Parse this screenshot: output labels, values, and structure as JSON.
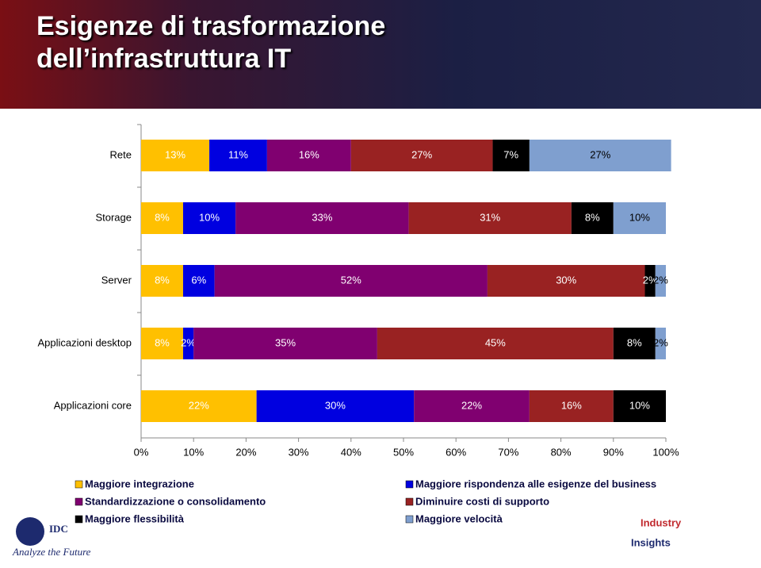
{
  "chart_data": {
    "type": "stacked-bar",
    "title": [
      "Esigenze di trasformazione",
      "dell’infrastruttura IT"
    ],
    "categories": [
      "Rete",
      "Storage",
      "Server",
      "Applicazioni desktop",
      "Applicazioni core"
    ],
    "series": [
      {
        "name": "Maggiore integrazione",
        "color": "#FFC000",
        "values": [
          13,
          8,
          8,
          8,
          22
        ],
        "value_labels": [
          "13%",
          "8%",
          "8%",
          "8%",
          "22%"
        ]
      },
      {
        "name": "Maggiore rispondenza alle esigenze del business",
        "color": "#0000E0",
        "values": [
          11,
          10,
          6,
          2,
          30
        ],
        "value_labels": [
          "11%",
          "10%",
          "6%",
          "2%",
          "30%"
        ]
      },
      {
        "name": "Standardizzazione o consolidamento",
        "color": "#800070",
        "values": [
          16,
          33,
          52,
          35,
          22
        ],
        "value_labels": [
          "16%",
          "33%",
          "52%",
          "35%",
          "22%"
        ]
      },
      {
        "name": "Diminuire costi di supporto",
        "color": "#992222",
        "values": [
          27,
          31,
          30,
          45,
          16
        ],
        "value_labels": [
          "27%",
          "31%",
          "30%",
          "45%",
          "16%"
        ]
      },
      {
        "name": "Maggiore flessibilità",
        "color": "#000000",
        "values": [
          7,
          8,
          2,
          8,
          10
        ],
        "value_labels": [
          "7%",
          "8%",
          "2%",
          "8%",
          "10%"
        ]
      },
      {
        "name": "Maggiore velocità",
        "color": "#7F9FCF",
        "values": [
          27,
          10,
          2,
          2,
          null
        ],
        "value_labels": [
          "27%",
          "10%",
          "2%",
          "2%",
          null
        ]
      }
    ],
    "xlim": [
      0,
      100
    ],
    "xticks": [
      {
        "value": 0,
        "label": "0%"
      },
      {
        "value": 10,
        "label": "10%"
      },
      {
        "value": 20,
        "label": "20%"
      },
      {
        "value": 30,
        "label": "30%"
      },
      {
        "value": 40,
        "label": "40%"
      },
      {
        "value": 50,
        "label": "50%"
      },
      {
        "value": 60,
        "label": "60%"
      },
      {
        "value": 70,
        "label": "70%"
      },
      {
        "value": 80,
        "label": "80%"
      },
      {
        "value": 90,
        "label": "90%"
      },
      {
        "value": 100,
        "label": "100%"
      }
    ],
    "logos": {
      "left": [
        "IDC",
        "Analyze the Future"
      ],
      "right": [
        "Industry",
        "Insights"
      ]
    }
  }
}
